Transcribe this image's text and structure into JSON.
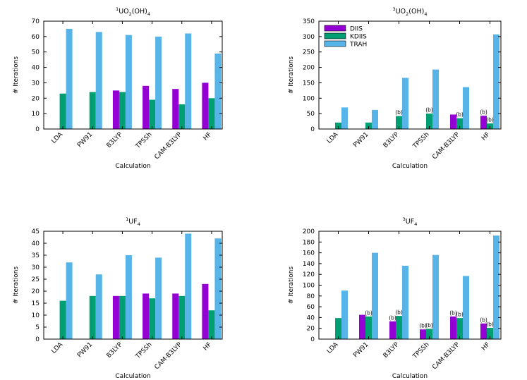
{
  "colors": {
    "DIIS": "#9400d3",
    "KDIIS": "#009e73",
    "TRAH": "#56b4e9"
  },
  "legend_entries": [
    "DIIS",
    "KDIIS",
    "TRAH"
  ],
  "chart_data": [
    {
      "type": "bar",
      "title_sup": "1",
      "title_base": "UO",
      "title_sub": "2",
      "title_rest": "(OH)",
      "title_sub2": "4",
      "xlabel": "Calculation",
      "ylabel": "# Iterations",
      "ylim": [
        0,
        70
      ],
      "yticks": [
        "0",
        "10",
        "20",
        "30",
        "40",
        "50",
        "60",
        "70"
      ],
      "categories": [
        "LDA",
        "PW91",
        "B3LYP",
        "TPSSh",
        "CAM-B3LYP",
        "HF"
      ],
      "series": [
        {
          "name": "DIIS",
          "values": [
            null,
            null,
            25,
            28,
            26,
            30
          ]
        },
        {
          "name": "KDIIS",
          "values": [
            23,
            24,
            24,
            19,
            16,
            20
          ]
        },
        {
          "name": "TRAH",
          "values": [
            65,
            63,
            61,
            60,
            62,
            49
          ]
        }
      ],
      "annotations": [],
      "legend": "none"
    },
    {
      "type": "bar",
      "title_sup": "3",
      "title_base": "UO",
      "title_sub": "2",
      "title_rest": "(OH)",
      "title_sub2": "4",
      "xlabel": "Calculation",
      "ylabel": "# Iterations",
      "ylim": [
        0,
        350
      ],
      "yticks": [
        "0",
        "50",
        "100",
        "150",
        "200",
        "250",
        "300",
        "350"
      ],
      "categories": [
        "LDA",
        "PW91",
        "B3LYP",
        "TPSSh",
        "CAM-B3LYP",
        "HF"
      ],
      "series": [
        {
          "name": "DIIS",
          "values": [
            null,
            null,
            null,
            null,
            47,
            43
          ]
        },
        {
          "name": "KDIIS",
          "values": [
            21,
            21,
            42,
            50,
            35,
            18
          ]
        },
        {
          "name": "TRAH",
          "values": [
            70,
            62,
            166,
            193,
            136,
            307
          ]
        }
      ],
      "annotations": [
        {
          "category": 2,
          "series": 1,
          "text": "(b)"
        },
        {
          "category": 3,
          "series": 1,
          "text": "(b)"
        },
        {
          "category": 4,
          "series": 1,
          "text": "(b)"
        },
        {
          "category": 5,
          "series": 0,
          "text": "(b)"
        },
        {
          "category": 5,
          "series": 1,
          "text": "(b)"
        }
      ],
      "legend": "top-left"
    },
    {
      "type": "bar",
      "title_sup": "1",
      "title_base": "UF",
      "title_sub": "4",
      "title_rest": "",
      "title_sub2": "",
      "xlabel": "Calculation",
      "ylabel": "# Iterations",
      "ylim": [
        0,
        45
      ],
      "yticks": [
        "0",
        "5",
        "10",
        "15",
        "20",
        "25",
        "30",
        "35",
        "40",
        "45"
      ],
      "categories": [
        "LDA",
        "PW91",
        "B3LYP",
        "TPSSh",
        "CAM-B3LYP",
        "HF"
      ],
      "series": [
        {
          "name": "DIIS",
          "values": [
            null,
            null,
            18,
            19,
            19,
            23
          ]
        },
        {
          "name": "KDIIS",
          "values": [
            16,
            18,
            18,
            17,
            18,
            12
          ]
        },
        {
          "name": "TRAH",
          "values": [
            32,
            27,
            35,
            34,
            44,
            42
          ]
        }
      ],
      "annotations": [],
      "legend": "none"
    },
    {
      "type": "bar",
      "title_sup": "3",
      "title_base": "UF",
      "title_sub": "4",
      "title_rest": "",
      "title_sub2": "",
      "xlabel": "Calculation",
      "ylabel": "# Iterations",
      "ylim": [
        0,
        200
      ],
      "yticks": [
        "0",
        "20",
        "40",
        "60",
        "80",
        "100",
        "120",
        "140",
        "160",
        "180",
        "200"
      ],
      "categories": [
        "LDA",
        "PW91",
        "B3LYP",
        "TPSSh",
        "CAM-B3LYP",
        "HF"
      ],
      "series": [
        {
          "name": "DIIS",
          "values": [
            null,
            45,
            33,
            18,
            42,
            29
          ]
        },
        {
          "name": "KDIIS",
          "values": [
            39,
            42,
            43,
            19,
            39,
            21
          ]
        },
        {
          "name": "TRAH",
          "values": [
            90,
            160,
            136,
            156,
            117,
            192
          ]
        }
      ],
      "annotations": [
        {
          "category": 1,
          "series": 1,
          "text": "(b)"
        },
        {
          "category": 2,
          "series": 0,
          "text": "(b)"
        },
        {
          "category": 2,
          "series": 1,
          "text": "(b)"
        },
        {
          "category": 3,
          "series": 0,
          "text": "(b)"
        },
        {
          "category": 3,
          "series": 1,
          "text": "(b)"
        },
        {
          "category": 4,
          "series": 0,
          "text": "(b)"
        },
        {
          "category": 4,
          "series": 1,
          "text": "(b)"
        },
        {
          "category": 5,
          "series": 0,
          "text": "(b)"
        },
        {
          "category": 5,
          "series": 1,
          "text": "(b)"
        }
      ],
      "legend": "none"
    }
  ]
}
